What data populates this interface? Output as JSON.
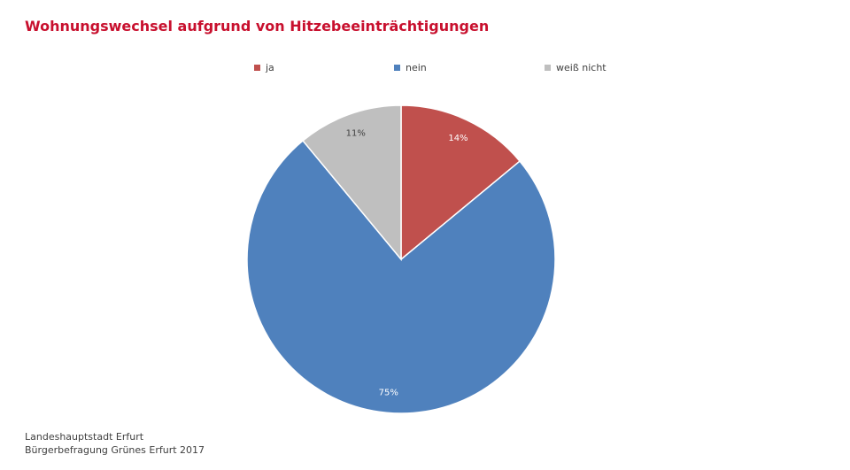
{
  "chart_data": {
    "type": "pie",
    "title": "Wohnungswechsel aufgrund von Hitzebeeinträchtigungen",
    "categories": [
      "ja",
      "nein",
      "weiß nicht"
    ],
    "values": [
      14,
      75,
      11
    ],
    "labels": [
      "14%",
      "75%",
      "11%"
    ],
    "colors": [
      "#c0504d",
      "#4f81bd",
      "#bfbfbf"
    ],
    "label_colors": [
      "#ffffff",
      "#ffffff",
      "#404040"
    ],
    "legend_position": "top",
    "start_angle": "12 o'clock",
    "direction": "clockwise"
  },
  "footer": {
    "line1": "Landeshauptstadt Erfurt",
    "line2": "Bürgerbefragung Grünes Erfurt 2017"
  }
}
